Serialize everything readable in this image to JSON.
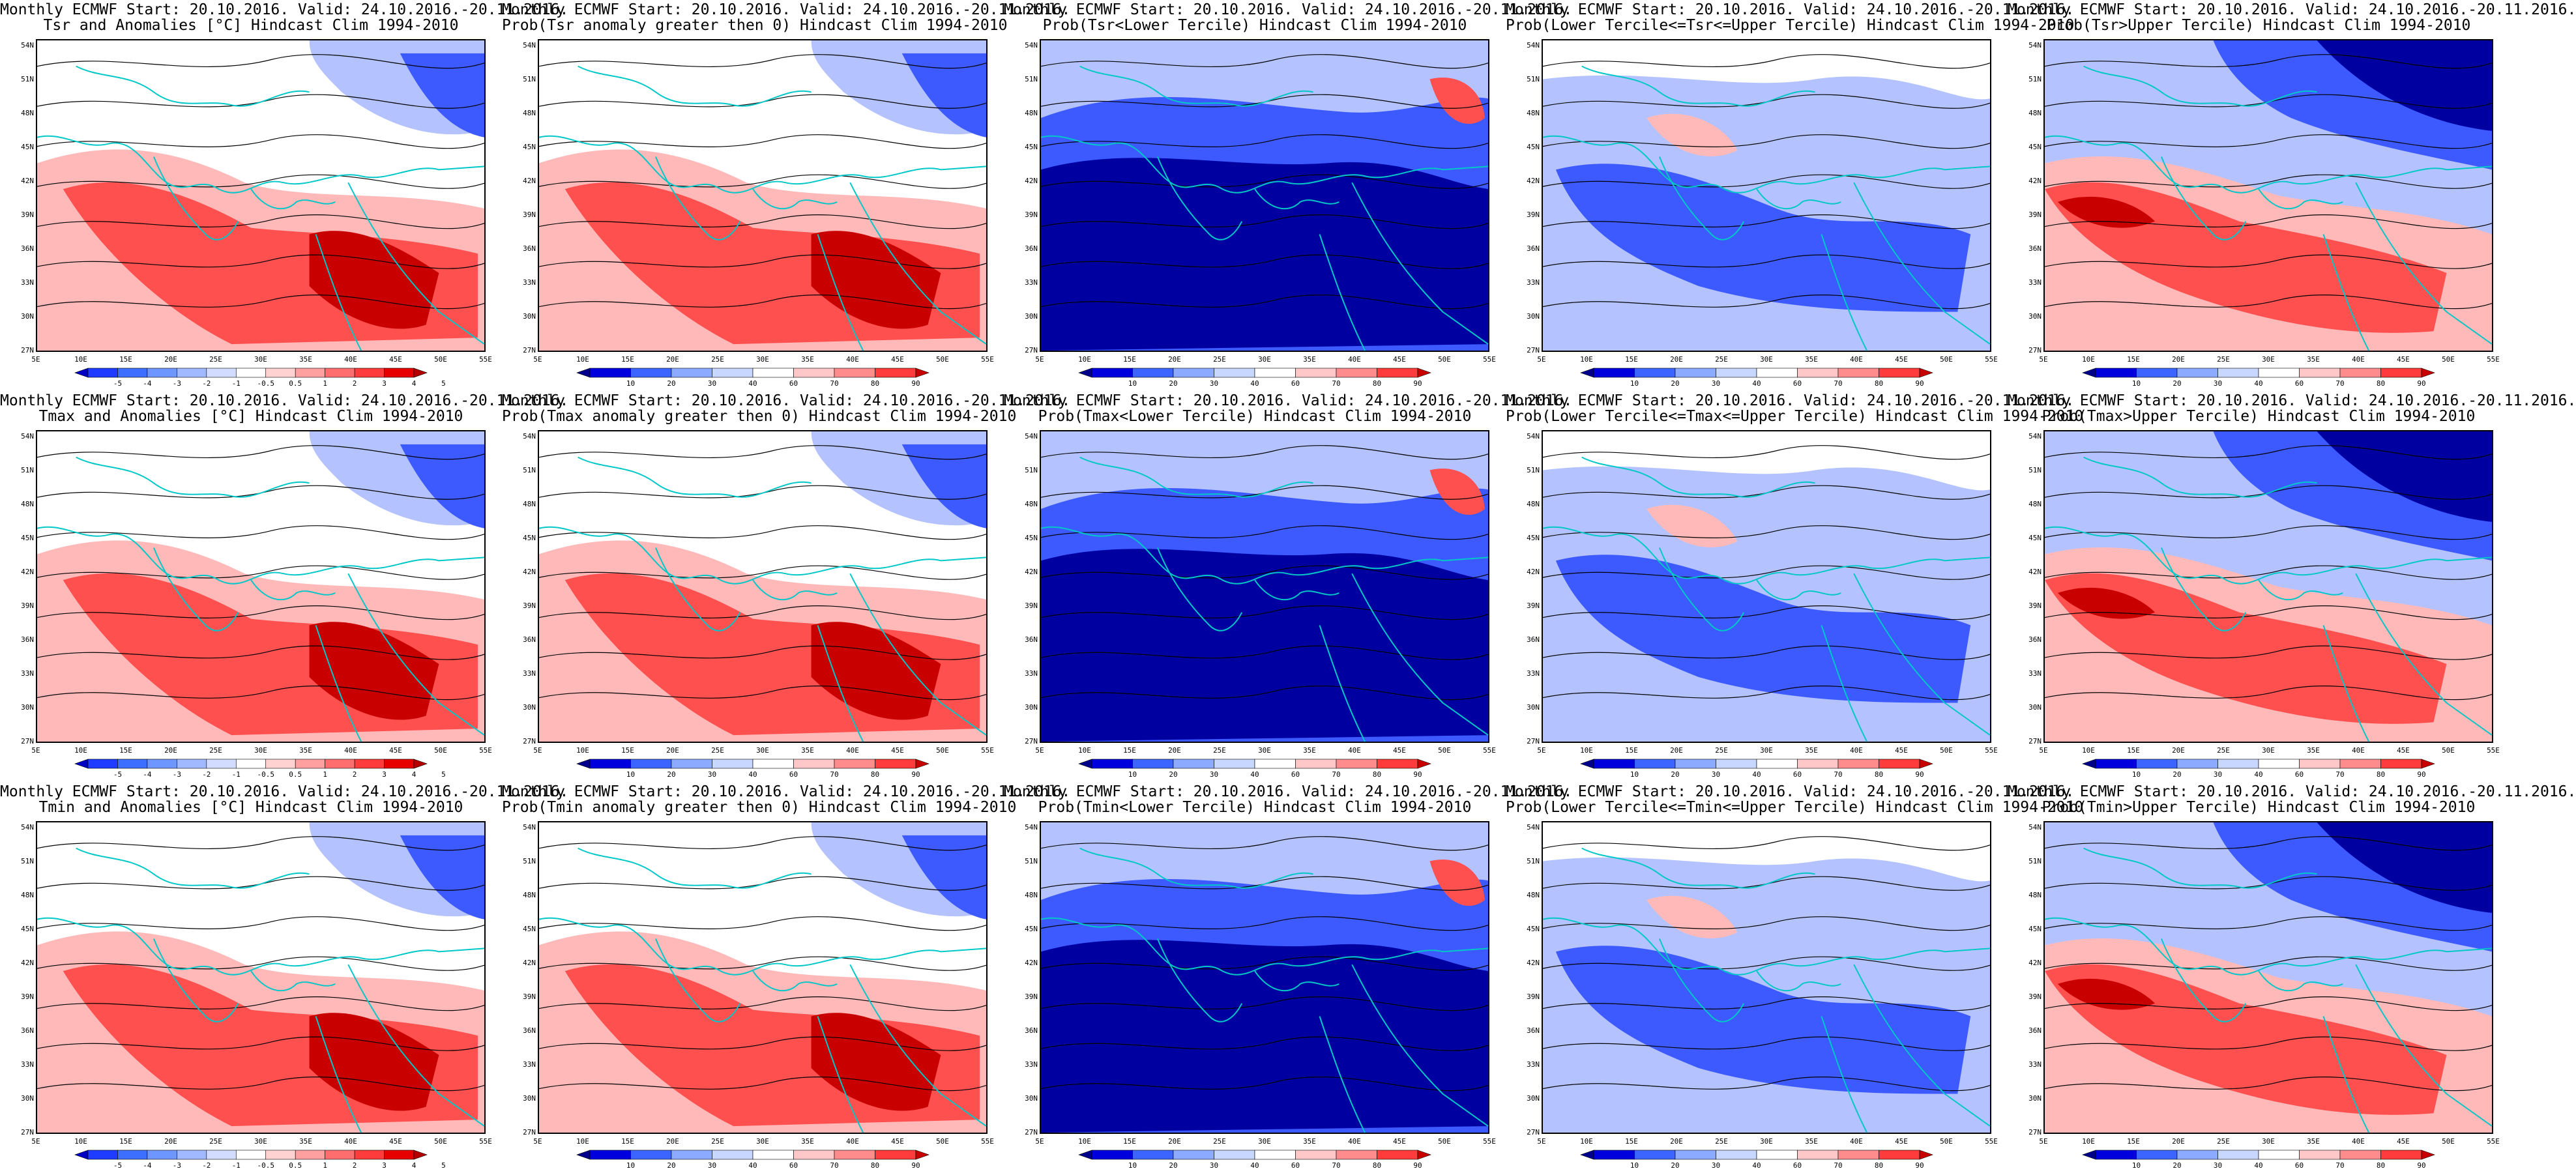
{
  "panels": [
    {
      "id": "tsr-anom",
      "line1": "Monthly ECMWF Start: 20.10.2016. Valid: 24.10.2016.-20.11.2016.",
      "line2": "Tsr and Anomalies [°C] Hindcast Clim 1994-2010",
      "field": "anomaly",
      "colorbar": "anomaly",
      "tendency": "warm"
    },
    {
      "id": "tsr-prob-pos",
      "line1": "Monthly ECMWF Start: 20.10.2016. Valid: 24.10.2016.-20.11.2016.",
      "line2": "Prob(Tsr anomaly greater then 0) Hindcast Clim 1994-2010",
      "field": "prob",
      "colorbar": "prob",
      "tendency": "warm"
    },
    {
      "id": "tsr-prob-lower",
      "line1": "Monthly ECMWF Start: 20.10.2016. Valid: 24.10.2016.-20.11.2016.",
      "line2": "Prob(Tsr<Lower Tercile) Hindcast Clim 1994-2010",
      "field": "prob",
      "colorbar": "prob",
      "tendency": "cold"
    },
    {
      "id": "tsr-prob-middle",
      "line1": "Monthly ECMWF Start: 20.10.2016. Valid: 24.10.2016.-20.11.2016.",
      "line2": "Prob(Lower Tercile<=Tsr<=Upper Tercile) Hindcast Clim 1994-2010",
      "field": "prob",
      "colorbar": "prob",
      "tendency": "middle"
    },
    {
      "id": "tsr-prob-upper",
      "line1": "Monthly ECMWF Start: 20.10.2016. Valid: 24.10.2016.-20.11.2016.",
      "line2": "Prob(Tsr>Upper Tercile) Hindcast Clim 1994-2010",
      "field": "prob",
      "colorbar": "prob",
      "tendency": "upper"
    },
    {
      "id": "tmax-anom",
      "line1": "Monthly ECMWF Start: 20.10.2016. Valid: 24.10.2016.-20.11.2016.",
      "line2": "Tmax and Anomalies [°C] Hindcast Clim 1994-2010",
      "field": "anomaly",
      "colorbar": "anomaly",
      "tendency": "warm"
    },
    {
      "id": "tmax-prob-pos",
      "line1": "Monthly ECMWF Start: 20.10.2016. Valid: 24.10.2016.-20.11.2016.",
      "line2": "Prob(Tmax anomaly greater then 0) Hindcast Clim 1994-2010",
      "field": "prob",
      "colorbar": "prob",
      "tendency": "warm"
    },
    {
      "id": "tmax-prob-lower",
      "line1": "Monthly ECMWF Start: 20.10.2016. Valid: 24.10.2016.-20.11.2016.",
      "line2": "Prob(Tmax<Lower Tercile) Hindcast Clim 1994-2010",
      "field": "prob",
      "colorbar": "prob",
      "tendency": "cold"
    },
    {
      "id": "tmax-prob-middle",
      "line1": "Monthly ECMWF Start: 20.10.2016. Valid: 24.10.2016.-20.11.2016.",
      "line2": "Prob(Lower Tercile<=Tmax<=Upper Tercile) Hindcast Clim 1994-2010",
      "field": "prob",
      "colorbar": "prob",
      "tendency": "middle"
    },
    {
      "id": "tmax-prob-upper",
      "line1": "Monthly ECMWF Start: 20.10.2016. Valid: 24.10.2016.-20.11.2016.",
      "line2": "Prob(Tmax>Upper Tercile) Hindcast Clim 1994-2010",
      "field": "prob",
      "colorbar": "prob",
      "tendency": "upper"
    },
    {
      "id": "tmin-anom",
      "line1": "Monthly ECMWF Start: 20.10.2016. Valid: 24.10.2016.-20.11.2016.",
      "line2": "Tmin and Anomalies [°C] Hindcast Clim 1994-2010",
      "field": "anomaly",
      "colorbar": "anomaly",
      "tendency": "warm"
    },
    {
      "id": "tmin-prob-pos",
      "line1": "Monthly ECMWF Start: 20.10.2016. Valid: 24.10.2016.-20.11.2016.",
      "line2": "Prob(Tmin anomaly greater then 0) Hindcast Clim 1994-2010",
      "field": "prob",
      "colorbar": "prob",
      "tendency": "warm"
    },
    {
      "id": "tmin-prob-lower",
      "line1": "Monthly ECMWF Start: 20.10.2016. Valid: 24.10.2016.-20.11.2016.",
      "line2": "Prob(Tmin<Lower Tercile) Hindcast Clim 1994-2010",
      "field": "prob",
      "colorbar": "prob",
      "tendency": "cold"
    },
    {
      "id": "tmin-prob-middle",
      "line1": "Monthly ECMWF Start: 20.10.2016. Valid: 24.10.2016.-20.11.2016.",
      "line2": "Prob(Lower Tercile<=Tmin<=Upper Tercile) Hindcast Clim 1994-2010",
      "field": "prob",
      "colorbar": "prob",
      "tendency": "middle"
    },
    {
      "id": "tmin-prob-upper",
      "line1": "Monthly ECMWF Start: 20.10.2016. Valid: 24.10.2016.-20.11.2016.",
      "line2": "Prob(Tmin>Upper Tercile) Hindcast Clim 1994-2010",
      "field": "prob",
      "colorbar": "prob",
      "tendency": "upper"
    }
  ],
  "axes": {
    "lat_labels": [
      "54N",
      "51N",
      "48N",
      "45N",
      "42N",
      "39N",
      "36N",
      "33N",
      "30N",
      "27N"
    ],
    "lon_labels": [
      "5E",
      "10E",
      "15E",
      "20E",
      "25E",
      "30E",
      "35E",
      "40E",
      "45E",
      "50E",
      "55E"
    ]
  },
  "colorbars": {
    "anomaly": {
      "labels": [
        "-5",
        "-4",
        "-3",
        "-2",
        "-1",
        "-0.5",
        "0.5",
        "1",
        "2",
        "3",
        "4",
        "5"
      ],
      "colors": [
        "#0000c8",
        "#1e3cff",
        "#3c6eff",
        "#6e96ff",
        "#a0b9ff",
        "#d2dcff",
        "#ffffff",
        "#ffd2d2",
        "#ffa0a0",
        "#ff6e6e",
        "#ff3c3c",
        "#e60000",
        "#b40000"
      ]
    },
    "prob": {
      "labels": [
        "10",
        "20",
        "30",
        "40",
        "60",
        "70",
        "80",
        "90"
      ],
      "colors": [
        "#00008c",
        "#0000dc",
        "#3c64ff",
        "#8caaff",
        "#c8d7ff",
        "#ffffff",
        "#ffc8c8",
        "#ff8c8c",
        "#ff3c3c",
        "#c80000"
      ]
    }
  },
  "palette": {
    "coast": "#00c8c8",
    "contour": "#000000",
    "cold_dark": "#0000a0",
    "cold": "#3c5aff",
    "cold_light": "#b4c3ff",
    "warm_light": "#ffb9b9",
    "warm": "#ff5050",
    "warm_dark": "#c80000"
  }
}
